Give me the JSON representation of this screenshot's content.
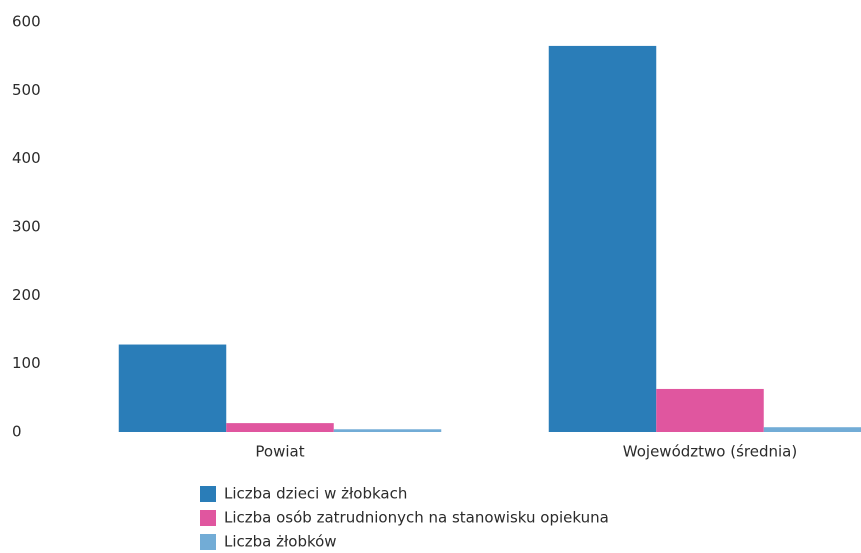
{
  "chart_data": {
    "type": "bar",
    "categories": [
      "Powiat",
      "Województwo (średnia)"
    ],
    "series": [
      {
        "name": "Liczba dzieci w żłobkach",
        "color": "#2a7db8",
        "values": [
          128,
          565
        ]
      },
      {
        "name": "Liczba osób zatrudnionych na stanowisku opiekuna",
        "color": "#e0569f",
        "values": [
          13,
          63
        ]
      },
      {
        "name": "Liczba żłobków",
        "color": "#72acd6",
        "values": [
          4,
          7
        ]
      }
    ],
    "ylim": [
      0,
      600
    ],
    "yticks": [
      0,
      100,
      200,
      300,
      400,
      500,
      600
    ],
    "grid": false,
    "legend": "bottom"
  }
}
